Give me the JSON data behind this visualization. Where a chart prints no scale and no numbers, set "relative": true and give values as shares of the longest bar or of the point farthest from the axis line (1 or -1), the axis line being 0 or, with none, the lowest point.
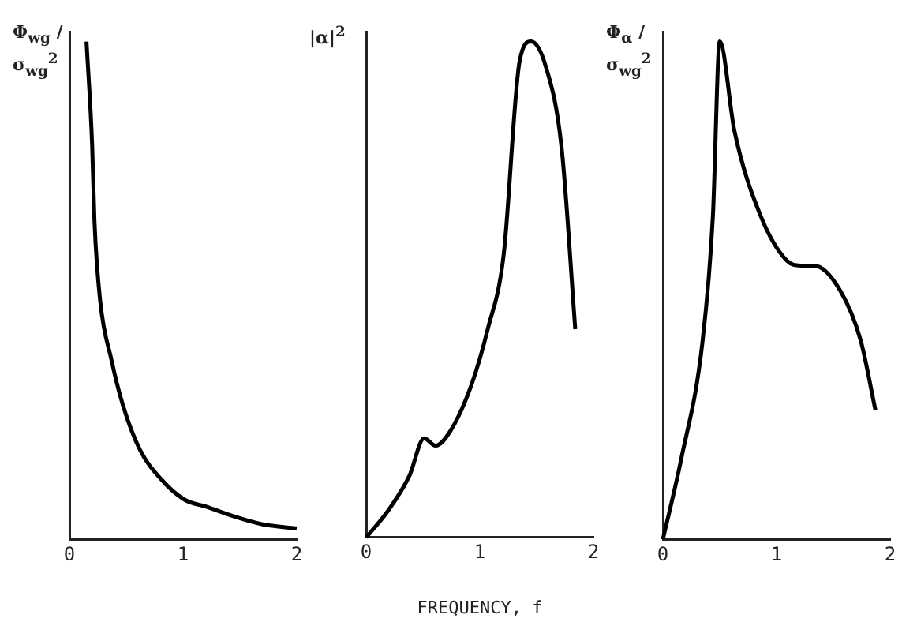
{
  "chart_data": [
    {
      "type": "line",
      "ylabel": "Φ$_{wg}$ / σ$_{wg}$$^{2}$",
      "relative": true,
      "xlim": [
        0,
        2
      ],
      "xticks": [
        0,
        1,
        2
      ],
      "series": [
        {
          "color": "#000000",
          "x": [
            0.15,
            0.2,
            0.22,
            0.27,
            0.37,
            0.47,
            0.62,
            0.81,
            1.01,
            1.21,
            1.46,
            1.7,
            2.0
          ],
          "values": [
            1.0,
            0.79,
            0.64,
            0.48,
            0.36,
            0.27,
            0.18,
            0.12,
            0.08,
            0.065,
            0.045,
            0.03,
            0.022
          ]
        }
      ]
    },
    {
      "type": "line",
      "ylabel": "|α|$^{2}$",
      "xlabel": "FREQUENCY, f",
      "relative": true,
      "xlim": [
        0,
        2
      ],
      "xticks": [
        0,
        1,
        2
      ],
      "series": [
        {
          "color": "#000000",
          "x": [
            0,
            0.19,
            0.38,
            0.51,
            0.61,
            0.75,
            0.93,
            1.07,
            1.21,
            1.35,
            1.45,
            1.58,
            1.72,
            1.84
          ],
          "values": [
            0,
            0.053,
            0.124,
            0.2,
            0.185,
            0.218,
            0.31,
            0.42,
            0.57,
            0.96,
            1.0,
            0.95,
            0.785,
            0.42
          ]
        }
      ]
    },
    {
      "type": "line",
      "ylabel": "Φ$_{α}$ / σ$_{wg}$$^{2}$",
      "relative": true,
      "xlim": [
        0,
        2
      ],
      "xticks": [
        0,
        1,
        2
      ],
      "series": [
        {
          "color": "#000000",
          "x": [
            0,
            0.16,
            0.35,
            0.44,
            0.5,
            0.63,
            0.86,
            1.09,
            1.21,
            1.33,
            1.56,
            1.74,
            1.87
          ],
          "values": [
            0,
            0.16,
            0.4,
            0.65,
            1.0,
            0.82,
            0.65,
            0.56,
            0.55,
            0.55,
            0.5,
            0.4,
            0.26
          ]
        }
      ]
    }
  ]
}
